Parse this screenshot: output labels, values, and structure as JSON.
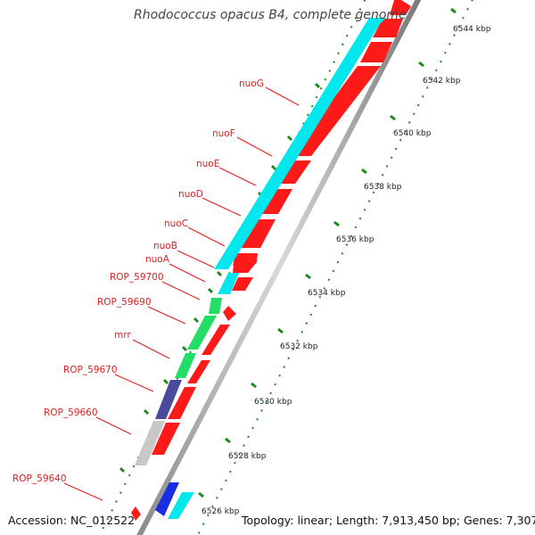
{
  "header": {
    "title": "Rhodococcus opacus B4, complete genome"
  },
  "footer": {
    "accession": "Accession: NC_012522",
    "summary": "Topology: linear; Length: 7,913,450 bp; Genes: 7,307"
  },
  "colors": {
    "gene_label": "#dd2020",
    "cds_forward": "#00e8ee",
    "cds_reverse": "#ff1a1a",
    "rna_green": "#22dd66",
    "rna_purple": "#4a4a9c",
    "pseudo_gray": "#c8c8c8",
    "blue_gene": "#1b2de0",
    "kbp_tick": "#1d8a1d"
  },
  "genes": [
    {
      "name": "nuoG"
    },
    {
      "name": "nuoF"
    },
    {
      "name": "nuoE"
    },
    {
      "name": "nuoD"
    },
    {
      "name": "nuoC"
    },
    {
      "name": "nuoB"
    },
    {
      "name": "nuoA"
    },
    {
      "name": "ROP_59700"
    },
    {
      "name": "ROP_59690"
    },
    {
      "name": "mrr"
    },
    {
      "name": "ROP_59670"
    },
    {
      "name": "ROP_59660"
    },
    {
      "name": "ROP_59640"
    }
  ],
  "scale": [
    {
      "label": "6544 kbp"
    },
    {
      "label": "6542 kbp"
    },
    {
      "label": "6540 kbp"
    },
    {
      "label": "6538 kbp"
    },
    {
      "label": "6536 kbp"
    },
    {
      "label": "6534 kbp"
    },
    {
      "label": "6532 kbp"
    },
    {
      "label": "6530 kbp"
    },
    {
      "label": "6528 kbp"
    },
    {
      "label": "6526 kbp"
    }
  ]
}
